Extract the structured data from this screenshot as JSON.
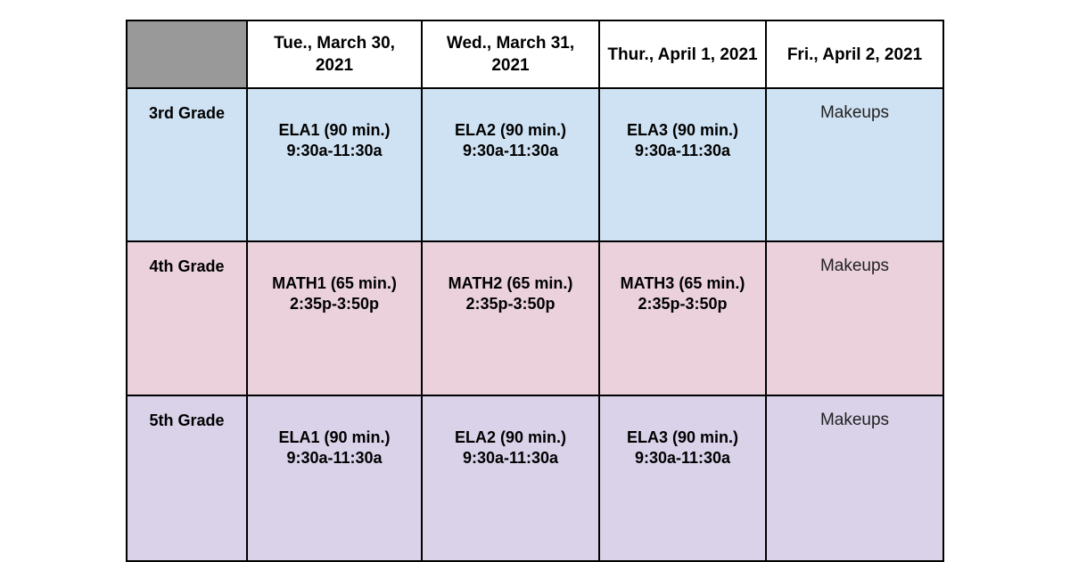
{
  "header": {
    "days": [
      "Tue., March 30, 2021",
      "Wed., March 31, 2021",
      "Thur., April 1, 2021",
      "Fri., April 2, 2021"
    ]
  },
  "rows": [
    {
      "grade": "3rd Grade",
      "color": "#cfe2f3",
      "sessions": [
        {
          "name": "ELA1 (90 min.)",
          "time": "9:30a-11:30a"
        },
        {
          "name": "ELA2 (90 min.)",
          "time": "9:30a-11:30a"
        },
        {
          "name": "ELA3 (90 min.)",
          "time": "9:30a-11:30a"
        }
      ],
      "friday": "Makeups"
    },
    {
      "grade": "4th Grade",
      "color": "#ead1dc",
      "sessions": [
        {
          "name": "MATH1 (65 min.)",
          "time": "2:35p-3:50p"
        },
        {
          "name": "MATH2 (65 min.)",
          "time": "2:35p-3:50p"
        },
        {
          "name": "MATH3 (65 min.)",
          "time": "2:35p-3:50p"
        }
      ],
      "friday": "Makeups"
    },
    {
      "grade": "5th Grade",
      "color": "#d9d2e9",
      "sessions": [
        {
          "name": "ELA1 (90 min.)",
          "time": "9:30a-11:30a"
        },
        {
          "name": "ELA2 (90 min.)",
          "time": "9:30a-11:30a"
        },
        {
          "name": "ELA3 (90 min.)",
          "time": "9:30a-11:30a"
        }
      ],
      "friday": "Makeups"
    }
  ],
  "colors": {
    "corner": "#999999",
    "header_bg": "#ffffff"
  }
}
